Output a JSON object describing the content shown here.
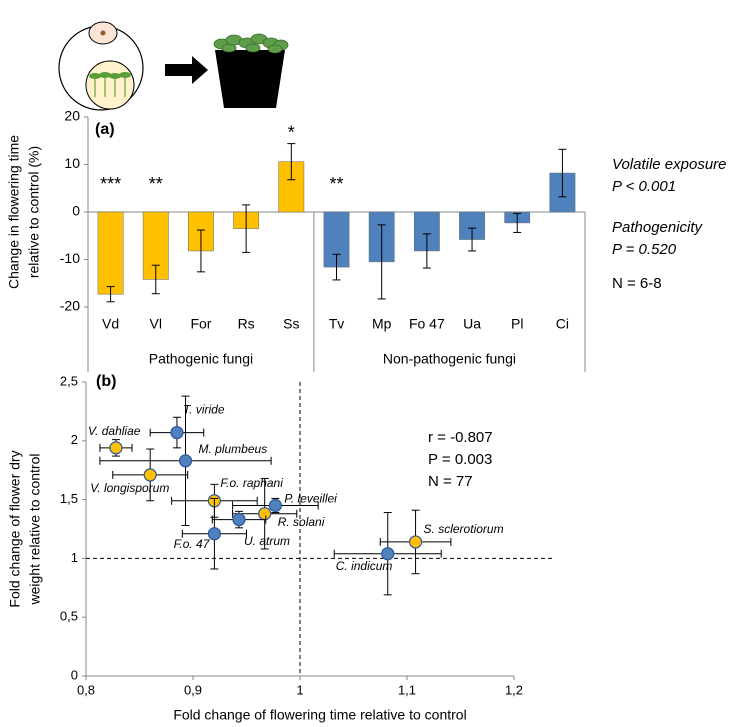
{
  "chart_data": [
    {
      "type": "bar",
      "panel": "(a)",
      "ylabel": [
        "Change in flowering time",
        "relative to control (%)"
      ],
      "ylim": [
        -20,
        20
      ],
      "yticks": [
        -20,
        -10,
        0,
        10,
        20
      ],
      "series": [
        {
          "name": "Pathogenic fungi",
          "color": "#ffc000",
          "categories": [
            "Vd",
            "Vl",
            "For",
            "Rs",
            "Ss"
          ],
          "values": [
            -17.3,
            -14.2,
            -8.2,
            -3.5,
            10.6
          ],
          "errors": [
            1.6,
            3.0,
            4.4,
            5.0,
            3.8
          ],
          "stars": [
            "***",
            "**",
            null,
            null,
            "*"
          ]
        },
        {
          "name": "Non-pathogenic fungi",
          "color": "#4f81bd",
          "categories": [
            "Tv",
            "Mp",
            "Fo 47",
            "Ua",
            "Pl",
            "Ci"
          ],
          "values": [
            -11.6,
            -10.5,
            -8.2,
            -5.8,
            -2.3,
            8.2
          ],
          "errors": [
            2.7,
            7.8,
            3.6,
            2.4,
            2.0,
            5.0
          ],
          "stars": [
            "**",
            null,
            null,
            null,
            null,
            null
          ]
        }
      ],
      "annotations": [
        "Volatile exposure",
        "P < 0.001",
        "Pathogenicity",
        "P = 0.520",
        "N = 6-8"
      ]
    },
    {
      "type": "scatter",
      "panel": "(b)",
      "xlabel": "Fold change of flowering time relative to control",
      "ylabel": [
        "Fold change of flower dry",
        "weight relative to control"
      ],
      "xlim": [
        0.8,
        1.2
      ],
      "xticks": [
        {
          "value": 0.8,
          "label": "0,8"
        },
        {
          "value": 0.9,
          "label": "0,9"
        },
        1,
        {
          "value": 1.1,
          "label": "1,1"
        },
        {
          "value": 1.2,
          "label": "1,2"
        }
      ],
      "ylim": [
        0,
        2.5
      ],
      "yticks": [
        0,
        {
          "value": 0.5,
          "label": "0,5"
        },
        1,
        {
          "value": 1.5,
          "label": "1,5"
        },
        2,
        {
          "value": 2.5,
          "label": "2,5"
        }
      ],
      "reference_lines": {
        "x": 1,
        "y": 1
      },
      "series": [
        {
          "name": "V. dahliae",
          "color": "#ffc000",
          "x": [
            0.828
          ],
          "values": [
            1.94
          ],
          "xerr": [
            0.015
          ],
          "yerr": [
            0.07
          ]
        },
        {
          "name": "T. viride",
          "color": "#4f81bd",
          "x": [
            0.885
          ],
          "values": [
            2.07
          ],
          "xerr": [
            0.025
          ],
          "yerr": [
            0.13
          ]
        },
        {
          "name": "M. plumbeus",
          "color": "#4f81bd",
          "x": [
            0.893
          ],
          "values": [
            1.83
          ],
          "xerr": [
            0.08
          ],
          "yerr": [
            0.55
          ]
        },
        {
          "name": "V. longisporum",
          "color": "#ffc000",
          "x": [
            0.86
          ],
          "values": [
            1.71
          ],
          "xerr": [
            0.035
          ],
          "yerr": [
            0.22
          ]
        },
        {
          "name": "F.o. raphani",
          "color": "#ffc000",
          "x": [
            0.92
          ],
          "values": [
            1.49
          ],
          "xerr": [
            0.04
          ],
          "yerr": [
            0.14
          ]
        },
        {
          "name": "P. leveillei",
          "color": "#4f81bd",
          "x": [
            0.977
          ],
          "values": [
            1.45
          ],
          "xerr": [
            0.04
          ],
          "yerr": [
            0.06
          ]
        },
        {
          "name": "R. solani",
          "color": "#ffc000",
          "x": [
            0.967
          ],
          "values": [
            1.38
          ],
          "xerr": [
            0.03
          ],
          "yerr": [
            0.3
          ]
        },
        {
          "name": "U. atrum",
          "color": "#4f81bd",
          "x": [
            0.943
          ],
          "values": [
            1.33
          ],
          "xerr": [
            0.025
          ],
          "yerr": [
            0.07
          ]
        },
        {
          "name": "F.o. 47",
          "color": "#4f81bd",
          "x": [
            0.92
          ],
          "values": [
            1.21
          ],
          "xerr": [
            0.03
          ],
          "yerr": [
            0.3
          ]
        },
        {
          "name": "S. sclerotiorum",
          "color": "#ffc000",
          "x": [
            1.108
          ],
          "values": [
            1.14
          ],
          "xerr": [
            0.033
          ],
          "yerr": [
            0.27
          ]
        },
        {
          "name": "C. indicum",
          "color": "#4f81bd",
          "x": [
            1.082
          ],
          "values": [
            1.04
          ],
          "xerr": [
            0.05
          ],
          "yerr": [
            0.35
          ]
        }
      ],
      "annotations": [
        "r = -0.807",
        "P = 0.003",
        "N = 77"
      ]
    }
  ]
}
